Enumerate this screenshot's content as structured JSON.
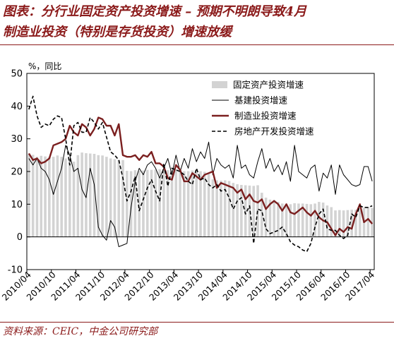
{
  "title": {
    "line1": "图表：分行业固定资产投资增速 – 预期不明朗导致4月",
    "line2": "制造业投资（特别是存货投资）增速放缓"
  },
  "source": "资料来源：CEIC，中金公司研究部",
  "colors": {
    "accent": "#8b1a1a",
    "bars": "#d3d3d3",
    "infrastructure": "#000000",
    "manufacturing": "#7b1f1f",
    "real_estate": "#000000"
  },
  "chart_data": {
    "type": "bar",
    "unit_label": "%，同比",
    "ylim": [
      -10,
      50
    ],
    "yticks": [
      "-10",
      "0",
      "10",
      "20",
      "30",
      "40",
      "50"
    ],
    "grid": false,
    "legend_position": "top-right",
    "x_tick_labels": [
      "2010/04",
      "2010/10",
      "2011/04",
      "2011/10",
      "2012/04",
      "2012/10",
      "2013/04",
      "2013/10",
      "2014/04",
      "2014/10",
      "2015/04",
      "2015/10",
      "2016/04",
      "2016/10",
      "2017/04"
    ],
    "x_tick_index": [
      0,
      6,
      12,
      18,
      24,
      30,
      36,
      42,
      48,
      54,
      60,
      66,
      72,
      78,
      84
    ],
    "x_count": 85,
    "series": [
      {
        "name": "固定资产投资增速",
        "kind": "bar",
        "values": [
          25.5,
          25.1,
          24.5,
          24.8,
          24.6,
          24.3,
          24.5,
          24.9,
          24.5,
          24.0,
          23.5,
          23.0,
          25.0,
          25.8,
          25.6,
          25.5,
          25.4,
          25.0,
          24.9,
          24.5,
          24.0,
          23.8,
          23.6,
          23.5,
          20.2,
          20.1,
          20.4,
          20.2,
          20.3,
          20.5,
          20.5,
          20.6,
          20.7,
          20.6,
          20.4,
          20.6,
          20.6,
          20.4,
          20.1,
          20.1,
          20.3,
          20.2,
          20.1,
          19.9,
          19.6,
          17.6,
          17.3,
          17.2,
          17.3,
          17.1,
          16.5,
          16.1,
          15.9,
          15.8,
          15.7,
          15.6,
          15.8,
          13.5,
          12.0,
          11.4,
          11.3,
          10.7,
          10.2,
          10.0,
          10.0,
          10.3,
          10.2,
          10.2,
          10.1,
          10.0,
          10.2,
          10.7,
          10.5,
          9.6,
          9.1,
          8.1,
          8.2,
          8.1,
          8.2,
          8.3,
          8.3,
          8.1,
          8.9,
          9.2,
          8.9
        ]
      },
      {
        "name": "基建投资增速",
        "kind": "line",
        "style": "solid-thin",
        "values": [
          24.0,
          22.0,
          24.0,
          21.0,
          20.0,
          17.5,
          13.0,
          17.0,
          21.0,
          28.0,
          25.0,
          20.0,
          21.0,
          14.5,
          12.0,
          21.0,
          16.0,
          3.0,
          0.5,
          -1.0,
          5.0,
          3.0,
          -3.0,
          -2.5,
          -2.0,
          9.0,
          17.0,
          21.0,
          19.0,
          22.0,
          23.0,
          21.0,
          18.0,
          21.0,
          24.0,
          19.0,
          25.0,
          20.0,
          24.0,
          21.0,
          27.0,
          23.0,
          26.0,
          24.0,
          29.0,
          19.0,
          24.0,
          22.0,
          21.0,
          22.0,
          18.0,
          28.0,
          21.0,
          22.0,
          19.0,
          18.0,
          23.0,
          27.0,
          21.0,
          24.0,
          20.0,
          22.0,
          19.0,
          23.0,
          17.0,
          28.0,
          20.0,
          19.0,
          18.0,
          21.0,
          22.0,
          14.0,
          19.5,
          18.0,
          22.0,
          13.0,
          22.0,
          19.0,
          17.5,
          16.0,
          15.5,
          16.0,
          21.5,
          21.5,
          17.0
        ]
      },
      {
        "name": "制造业投资增速",
        "kind": "line",
        "style": "solid-thick",
        "values": [
          25.5,
          23.5,
          24.0,
          22.5,
          23.0,
          24.0,
          28.0,
          28.5,
          29.0,
          30.0,
          34.0,
          32.0,
          31.0,
          34.5,
          33.5,
          31.0,
          33.0,
          36.5,
          36.0,
          34.0,
          34.0,
          31.0,
          34.5,
          25.0,
          24.5,
          24.5,
          25.0,
          23.5,
          25.0,
          24.5,
          26.0,
          22.5,
          22.5,
          21.5,
          18.0,
          17.5,
          22.0,
          20.5,
          17.0,
          17.0,
          19.5,
          18.5,
          17.5,
          19.0,
          19.5,
          20.0,
          15.0,
          16.5,
          16.0,
          15.5,
          15.0,
          13.5,
          14.5,
          11.5,
          13.0,
          11.0,
          10.5,
          11.5,
          8.5,
          10.0,
          11.0,
          10.0,
          8.0,
          10.0,
          7.5,
          7.0,
          8.0,
          9.0,
          7.5,
          6.5,
          8.0,
          6.0,
          5.0,
          4.5,
          2.5,
          0.5,
          2.5,
          1.5,
          3.0,
          2.5,
          7.0,
          10.0,
          4.5,
          5.5,
          4.0
        ]
      },
      {
        "name": "房地产开发投资增速",
        "kind": "line",
        "style": "dashed",
        "values": [
          39.0,
          43.0,
          37.0,
          33.5,
          34.5,
          34.0,
          36.0,
          37.0,
          36.5,
          30.0,
          22.0,
          34.0,
          35.0,
          32.0,
          32.0,
          36.5,
          35.0,
          33.0,
          35.0,
          30.5,
          26.0,
          25.0,
          23.5,
          18.0,
          11.0,
          14.0,
          18.5,
          8.0,
          11.5,
          15.0,
          17.5,
          14.0,
          11.0,
          22.5,
          15.5,
          21.0,
          20.5,
          20.0,
          19.0,
          17.0,
          16.0,
          21.0,
          17.5,
          18.0,
          16.0,
          15.0,
          16.0,
          14.0,
          14.5,
          12.0,
          8.5,
          11.0,
          12.0,
          7.0,
          9.5,
          -2.0,
          8.5,
          8.0,
          2.5,
          1.0,
          1.5,
          2.0,
          3.0,
          1.0,
          -1.5,
          -2.5,
          -3.0,
          -4.0,
          -4.5,
          -2.0,
          3.0,
          7.0,
          8.5,
          2.5,
          2.0,
          2.0,
          0.5,
          -0.5,
          0.5,
          7.0,
          6.0,
          9.5,
          9.0,
          9.0,
          9.5
        ]
      }
    ]
  }
}
